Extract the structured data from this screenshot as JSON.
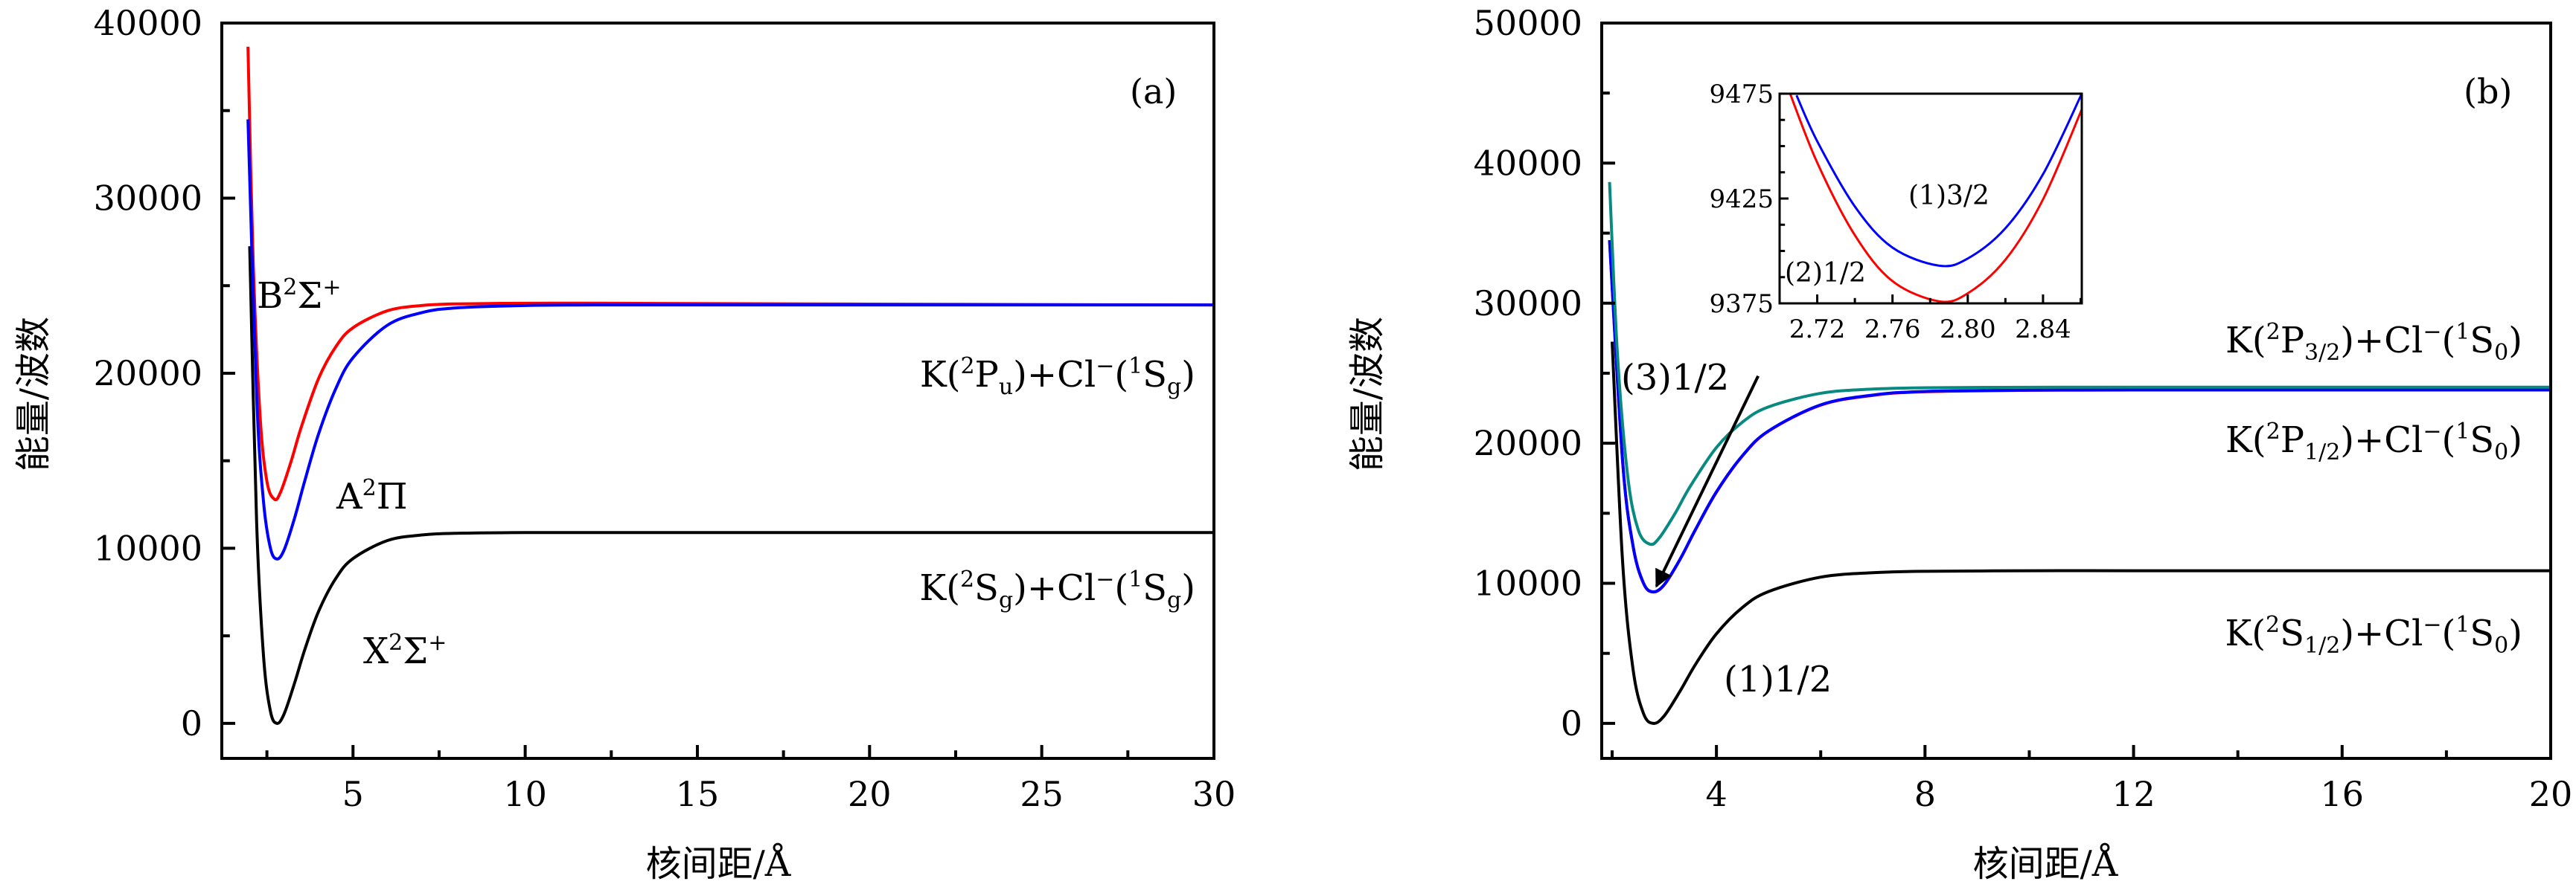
{
  "chart_data": [
    {
      "type": "line",
      "panel": "(a)",
      "xlabel": "核间距/Å",
      "ylabel": "能量/波数",
      "xlim": [
        1.19,
        30
      ],
      "ylim": [
        -2000,
        40000
      ],
      "xticks": [
        5,
        10,
        15,
        20,
        25,
        30
      ],
      "yticks": [
        0,
        10000,
        20000,
        30000,
        40000
      ],
      "series": [
        {
          "name": "X2Σ+",
          "color": "#000000",
          "x": [
            2.0,
            2.2,
            2.4,
            2.6,
            2.79,
            3.0,
            3.3,
            3.6,
            4,
            4.5,
            5,
            6,
            7,
            8,
            10,
            12,
            15,
            20,
            25,
            30
          ],
          "y": [
            27250,
            11565,
            3884,
            715,
            0,
            542,
            2286,
            4218,
            6395,
            8279,
            9413,
            10443,
            10760,
            10858,
            10897,
            10900,
            10900,
            10900,
            10900,
            10900
          ]
        },
        {
          "name": "B2Σ+",
          "color": "#ff0000",
          "x": [
            1.95,
            2.1,
            2.3,
            2.5,
            2.72,
            2.9,
            3.2,
            3.5,
            4,
            4.5,
            5,
            6,
            7,
            8,
            10,
            12,
            15,
            20,
            25,
            30
          ],
          "y": [
            38650,
            26453,
            17606,
            13822,
            12800,
            13223,
            14948,
            16937,
            19698,
            21511,
            22597,
            23567,
            23869,
            23960,
            23997,
            24000,
            23980,
            23950,
            23920,
            23900
          ]
        },
        {
          "name": "A2Π",
          "color": "#0000ff",
          "x": [
            1.95,
            2.2,
            2.4,
            2.6,
            2.79,
            3.0,
            3.3,
            3.6,
            4,
            4.5,
            5,
            6,
            7,
            8,
            10,
            12,
            15,
            20,
            25,
            30
          ],
          "y": [
            34500,
            18757,
            12689,
            10024,
            9390,
            9910,
            11704,
            13857,
            16531,
            19118,
            20883,
            22743,
            23462,
            23732,
            23868,
            23897,
            23900,
            23900,
            23900,
            23900
          ]
        }
      ],
      "annotations": {
        "tag": "(a)",
        "B": [
          {
            "t": "B"
          },
          {
            "t": "2",
            "s": "sup"
          },
          {
            "t": "Σ"
          },
          {
            "t": "+",
            "s": "sup"
          }
        ],
        "A": [
          {
            "t": "A"
          },
          {
            "t": "2",
            "s": "sup"
          },
          {
            "t": "Π"
          }
        ],
        "X": [
          {
            "t": "X"
          },
          {
            "t": "2",
            "s": "sup"
          },
          {
            "t": "Σ"
          },
          {
            "t": "+",
            "s": "sup"
          }
        ],
        "asym_P": [
          {
            "t": "K("
          },
          {
            "t": "2",
            "s": "sup"
          },
          {
            "t": "P"
          },
          {
            "t": "u",
            "s": "sub"
          },
          {
            "t": ")+Cl"
          },
          {
            "t": "−",
            "s": "sup"
          },
          {
            "t": "("
          },
          {
            "t": "1",
            "s": "sup"
          },
          {
            "t": "S"
          },
          {
            "t": "g",
            "s": "sub"
          },
          {
            "t": ")"
          }
        ],
        "asym_S": [
          {
            "t": "K("
          },
          {
            "t": "2",
            "s": "sup"
          },
          {
            "t": "S"
          },
          {
            "t": "g",
            "s": "sub"
          },
          {
            "t": ")+Cl"
          },
          {
            "t": "−",
            "s": "sup"
          },
          {
            "t": "("
          },
          {
            "t": "1",
            "s": "sup"
          },
          {
            "t": "S"
          },
          {
            "t": "g",
            "s": "sub"
          },
          {
            "t": ")"
          }
        ]
      }
    },
    {
      "type": "line",
      "panel": "(b)",
      "xlabel": "核间距/Å",
      "ylabel": "能量/波数",
      "xlim": [
        1.8,
        20
      ],
      "ylim": [
        -2500,
        50000
      ],
      "xticks": [
        4,
        8,
        12,
        16,
        20
      ],
      "yticks": [
        0,
        10000,
        20000,
        30000,
        40000,
        50000
      ],
      "series": [
        {
          "name": "(1)1/2",
          "color": "#000000",
          "x": [
            2.0,
            2.2,
            2.4,
            2.6,
            2.79,
            3.0,
            3.3,
            3.6,
            4,
            4.5,
            5,
            6,
            7,
            8,
            10,
            12,
            15,
            20
          ],
          "y": [
            27250,
            11565,
            3884,
            715,
            0,
            542,
            2286,
            4218,
            6395,
            8279,
            9413,
            10443,
            10760,
            10858,
            10897,
            10900,
            10900,
            10900
          ]
        },
        {
          "name": "(2)1/2",
          "color": "#ff0000",
          "x": [
            1.95,
            2.2,
            2.4,
            2.6,
            2.785,
            3.0,
            3.3,
            3.6,
            4,
            4.5,
            5,
            6,
            7,
            8,
            10,
            12,
            15,
            20
          ],
          "y": [
            34490,
            18740,
            12675,
            10010,
            9376,
            9895,
            11690,
            13840,
            16510,
            19100,
            20865,
            22720,
            23420,
            23680,
            23780,
            23800,
            23800,
            23800
          ]
        },
        {
          "name": "(1)3/2",
          "color": "#0000ff",
          "x": [
            1.95,
            2.2,
            2.4,
            2.6,
            2.785,
            3.0,
            3.3,
            3.6,
            4,
            4.5,
            5,
            6,
            7,
            8,
            10,
            12,
            15,
            20
          ],
          "y": [
            34500,
            18757,
            12689,
            10024,
            9393,
            9910,
            11704,
            13857,
            16531,
            19118,
            20883,
            22743,
            23440,
            23700,
            23790,
            23800,
            23800,
            23800
          ]
        },
        {
          "name": "(3)1/2",
          "color": "#088a80",
          "x": [
            1.95,
            2.1,
            2.3,
            2.5,
            2.72,
            2.9,
            3.2,
            3.5,
            4,
            4.5,
            5,
            6,
            7,
            8,
            10,
            12,
            15,
            20
          ],
          "y": [
            38650,
            26453,
            17606,
            13822,
            12800,
            13223,
            14948,
            16937,
            19698,
            21511,
            22597,
            23567,
            23869,
            23960,
            23997,
            24000,
            24000,
            24000
          ]
        }
      ],
      "arrow": {
        "from": [
          4.8,
          24800
        ],
        "to": [
          2.85,
          9800
        ]
      },
      "annotations": {
        "tag": "(b)",
        "s31": "(3)1/2",
        "s11": "(1)1/2",
        "asym_P32": [
          {
            "t": "K("
          },
          {
            "t": "2",
            "s": "sup"
          },
          {
            "t": "P"
          },
          {
            "t": "3/2",
            "s": "sub"
          },
          {
            "t": ")+Cl"
          },
          {
            "t": "−",
            "s": "sup"
          },
          {
            "t": "("
          },
          {
            "t": "1",
            "s": "sup"
          },
          {
            "t": "S"
          },
          {
            "t": "0",
            "s": "sub"
          },
          {
            "t": ")"
          }
        ],
        "asym_P12": [
          {
            "t": "K("
          },
          {
            "t": "2",
            "s": "sup"
          },
          {
            "t": "P"
          },
          {
            "t": "1/2",
            "s": "sub"
          },
          {
            "t": ")+Cl"
          },
          {
            "t": "−",
            "s": "sup"
          },
          {
            "t": "("
          },
          {
            "t": "1",
            "s": "sup"
          },
          {
            "t": "S"
          },
          {
            "t": "0",
            "s": "sub"
          },
          {
            "t": ")"
          }
        ],
        "asym_S12": [
          {
            "t": "K("
          },
          {
            "t": "2",
            "s": "sup"
          },
          {
            "t": "S"
          },
          {
            "t": "1/2",
            "s": "sub"
          },
          {
            "t": ")+Cl"
          },
          {
            "t": "−",
            "s": "sup"
          },
          {
            "t": "("
          },
          {
            "t": "1",
            "s": "sup"
          },
          {
            "t": "S"
          },
          {
            "t": "0",
            "s": "sub"
          },
          {
            "t": ")"
          }
        ]
      },
      "inset": {
        "xlim": [
          2.7,
          2.8606
        ],
        "ylim": [
          9375,
          9475
        ],
        "xticks": [
          "2.72",
          "2.76",
          "2.80",
          "2.84"
        ],
        "yticks": [
          "9375",
          "9425",
          "9475"
        ],
        "label_13_2": "(1)3/2",
        "label_21_2": "(2)1/2",
        "series": [
          {
            "name": "(2)1/2",
            "color": "#ff0000",
            "x": [
              2.705,
              2.72,
              2.74,
              2.76,
              2.7846,
              2.8,
              2.82,
              2.84,
              2.8606
            ],
            "y": [
              9476.4,
              9442.1,
              9407.5,
              9385.6,
              9376,
              9379.8,
              9395.8,
              9424.6,
              9467.5
            ]
          },
          {
            "name": "(1)3/2",
            "color": "#0000ff",
            "x": [
              2.709,
              2.72,
              2.74,
              2.76,
              2.7846,
              2.8,
              2.82,
              2.84,
              2.8606
            ],
            "y": [
              9474.2,
              9452.3,
              9421.2,
              9401.6,
              9393,
              9396.4,
              9410.8,
              9436.6,
              9475
            ]
          }
        ]
      }
    }
  ]
}
